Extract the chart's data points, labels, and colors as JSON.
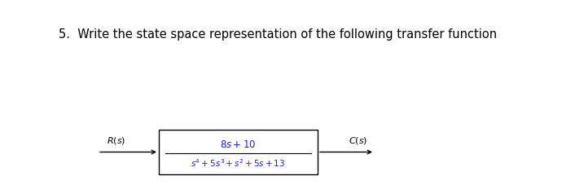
{
  "title": "5.  Write the state space representation of the following transfer function",
  "title_fontsize": 10.5,
  "title_color": "#000000",
  "numerator": "$8s + 10$",
  "denominator": "$s^4 + 5s^3 + s^2 + 5s + 13$",
  "Rs_label": "$R(s)$",
  "Cs_label": "$C(s)$",
  "label_color": "#1a1aff",
  "text_color": "#000000",
  "background_color": "#ffffff",
  "fig_width": 7.06,
  "fig_height": 2.38,
  "dpi": 100
}
